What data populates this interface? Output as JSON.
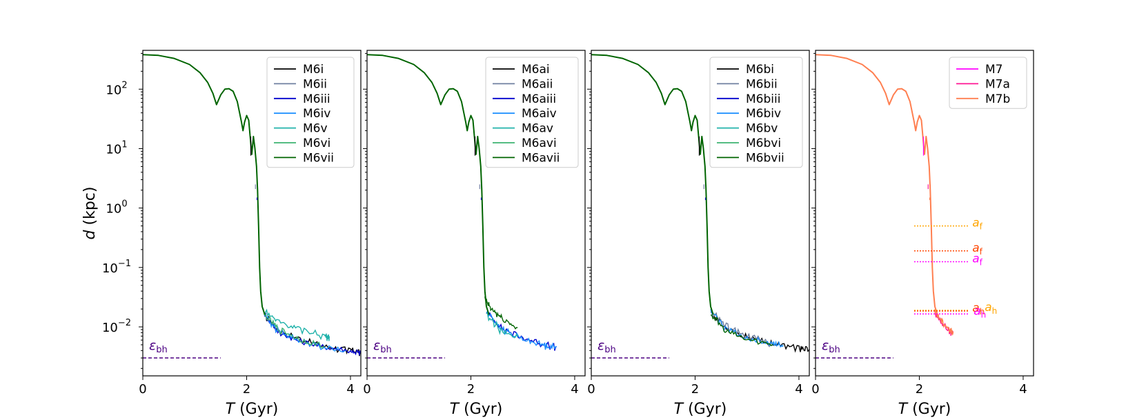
{
  "chart_data": {
    "type": "line",
    "ylabel": "d (kpc)",
    "ylabel_var": "d",
    "ylabel_unit": " (kpc)",
    "xlabel_var": "T",
    "xlabel_unit": " (Gyr)",
    "yscale": "log",
    "ylim": [
      0.0015,
      450
    ],
    "xticks": [
      0,
      2,
      4
    ],
    "yticks": [
      {
        "value": 100,
        "mant": "10",
        "exp": "2"
      },
      {
        "value": 10,
        "mant": "10",
        "exp": "1"
      },
      {
        "value": 1,
        "mant": "10",
        "exp": "0"
      },
      {
        "value": 0.1,
        "mant": "10",
        "exp": "−1"
      },
      {
        "value": 0.01,
        "mant": "10",
        "exp": "−2"
      }
    ],
    "softening": {
      "label_main": "ε",
      "label_sub": "bh",
      "value": 0.003,
      "x_range": [
        0,
        1.5
      ],
      "color": "#4b0082"
    },
    "orbit_profile": [
      [
        0,
        380
      ],
      [
        0.3,
        370
      ],
      [
        0.6,
        330
      ],
      [
        0.9,
        260
      ],
      [
        1.1,
        190
      ],
      [
        1.25,
        130
      ],
      [
        1.35,
        85
      ],
      [
        1.42,
        55
      ],
      [
        1.5,
        80
      ],
      [
        1.58,
        100
      ],
      [
        1.66,
        102
      ],
      [
        1.74,
        92
      ],
      [
        1.82,
        62
      ],
      [
        1.9,
        28
      ],
      [
        1.93,
        20
      ],
      [
        1.96,
        28
      ],
      [
        2.0,
        36
      ],
      [
        2.04,
        30
      ],
      [
        2.08,
        12
      ],
      [
        2.1,
        8
      ],
      [
        2.13,
        16
      ],
      [
        2.16,
        10
      ],
      [
        2.19,
        5
      ],
      [
        2.21,
        2
      ],
      [
        2.23,
        0.5
      ],
      [
        2.25,
        0.1
      ],
      [
        2.27,
        0.04
      ],
      [
        2.3,
        0.022
      ],
      [
        2.35,
        0.016
      ]
    ],
    "panels": [
      {
        "xlim": [
          0,
          4.2
        ],
        "legend": [
          {
            "name": "M6i",
            "color": "#000000"
          },
          {
            "name": "M6ii",
            "color": "#6f7f9f"
          },
          {
            "name": "M6iii",
            "color": "#0000cd"
          },
          {
            "name": "M6iv",
            "color": "#1e90ff"
          },
          {
            "name": "M6v",
            "color": "#20b2aa"
          },
          {
            "name": "M6vi",
            "color": "#3cb371"
          },
          {
            "name": "M6vii",
            "color": "#006400"
          }
        ],
        "tails": [
          {
            "color": "#000000",
            "points": [
              [
                2.35,
                0.016
              ],
              [
                2.6,
                0.009
              ],
              [
                3.0,
                0.0065
              ],
              [
                3.5,
                0.0047
              ],
              [
                4.0,
                0.0041
              ],
              [
                4.2,
                0.0038
              ]
            ]
          },
          {
            "color": "#0000cd",
            "points": [
              [
                2.35,
                0.016
              ],
              [
                2.6,
                0.0085
              ],
              [
                3.0,
                0.0058
              ],
              [
                3.5,
                0.0046
              ],
              [
                4.0,
                0.004
              ],
              [
                4.2,
                0.0037
              ]
            ]
          },
          {
            "color": "#1e90ff",
            "points": [
              [
                2.35,
                0.016
              ],
              [
                2.6,
                0.009
              ],
              [
                3.0,
                0.006
              ],
              [
                3.5,
                0.0045
              ],
              [
                3.9,
                0.004
              ]
            ]
          },
          {
            "color": "#20b2aa",
            "points": [
              [
                2.3,
                0.02
              ],
              [
                2.6,
                0.013
              ],
              [
                3.0,
                0.0095
              ],
              [
                3.5,
                0.0072
              ],
              [
                3.6,
                0.0068
              ]
            ]
          },
          {
            "color": "#3cb371",
            "points": [
              [
                2.35,
                0.016
              ],
              [
                2.6,
                0.0095
              ],
              [
                3.0,
                0.0063
              ],
              [
                3.5,
                0.0048
              ]
            ]
          }
        ]
      },
      {
        "xlim": [
          0,
          4.2
        ],
        "legend": [
          {
            "name": "M6ai",
            "color": "#000000"
          },
          {
            "name": "M6aii",
            "color": "#6f7f9f"
          },
          {
            "name": "M6aiii",
            "color": "#0000cd"
          },
          {
            "name": "M6aiv",
            "color": "#1e90ff"
          },
          {
            "name": "M6av",
            "color": "#20b2aa"
          },
          {
            "name": "M6avi",
            "color": "#3cb371"
          },
          {
            "name": "M6avii",
            "color": "#006400"
          }
        ],
        "tails": [
          {
            "color": "#0000cd",
            "points": [
              [
                2.3,
                0.018
              ],
              [
                2.6,
                0.0095
              ],
              [
                3.0,
                0.0066
              ],
              [
                3.4,
                0.0052
              ],
              [
                3.65,
                0.0047
              ]
            ]
          },
          {
            "color": "#1e90ff",
            "points": [
              [
                2.3,
                0.018
              ],
              [
                2.6,
                0.0095
              ],
              [
                3.0,
                0.0063
              ],
              [
                3.4,
                0.005
              ],
              [
                3.65,
                0.0046
              ]
            ]
          },
          {
            "color": "#20b2aa",
            "points": [
              [
                2.3,
                0.017
              ],
              [
                2.6,
                0.0085
              ],
              [
                2.9,
                0.0068
              ]
            ]
          },
          {
            "color": "#006400",
            "points": [
              [
                2.27,
                0.03
              ],
              [
                2.4,
                0.02
              ],
              [
                2.6,
                0.014
              ],
              [
                2.9,
                0.0097
              ]
            ]
          }
        ]
      },
      {
        "xlim": [
          0,
          4.2
        ],
        "legend": [
          {
            "name": "M6bi",
            "color": "#000000"
          },
          {
            "name": "M6bii",
            "color": "#6f7f9f"
          },
          {
            "name": "M6biii",
            "color": "#0000cd"
          },
          {
            "name": "M6biv",
            "color": "#1e90ff"
          },
          {
            "name": "M6bv",
            "color": "#20b2aa"
          },
          {
            "name": "M6bvi",
            "color": "#3cb371"
          },
          {
            "name": "M6bvii",
            "color": "#006400"
          }
        ],
        "tails": [
          {
            "color": "#000000",
            "points": [
              [
                2.3,
                0.018
              ],
              [
                2.6,
                0.0095
              ],
              [
                3.0,
                0.0068
              ],
              [
                3.5,
                0.0052
              ],
              [
                4.0,
                0.0045
              ],
              [
                4.2,
                0.0042
              ]
            ]
          },
          {
            "color": "#6f7f9f",
            "points": [
              [
                2.3,
                0.019
              ],
              [
                2.6,
                0.0105
              ],
              [
                3.0,
                0.0072
              ],
              [
                3.5,
                0.0053
              ]
            ]
          },
          {
            "color": "#1e90ff",
            "points": [
              [
                2.3,
                0.018
              ],
              [
                2.6,
                0.0095
              ],
              [
                3.0,
                0.0066
              ],
              [
                3.5,
                0.0052
              ],
              [
                3.7,
                0.0049
              ]
            ]
          },
          {
            "color": "#006400",
            "points": [
              [
                2.3,
                0.017
              ],
              [
                2.6,
                0.0085
              ],
              [
                3.0,
                0.0062
              ],
              [
                3.5,
                0.0051
              ]
            ]
          }
        ]
      },
      {
        "xlim": [
          0,
          4.2
        ],
        "legend": [
          {
            "name": "M7",
            "color": "#ff00ff"
          },
          {
            "name": "M7a",
            "color": "#ff1493"
          },
          {
            "name": "M7b",
            "color": "#ff7f50"
          }
        ],
        "tails": [
          {
            "color": "#ff1493",
            "points": [
              [
                2.3,
                0.017
              ],
              [
                2.45,
                0.011
              ],
              [
                2.6,
                0.0085
              ],
              [
                2.65,
                0.008
              ]
            ]
          },
          {
            "color": "#ff7f50",
            "points": [
              [
                2.3,
                0.018
              ],
              [
                2.45,
                0.012
              ],
              [
                2.6,
                0.0088
              ],
              [
                2.65,
                0.0083
              ]
            ]
          }
        ],
        "reference_lines": [
          {
            "color": "#ffa500",
            "value": 0.5,
            "label_main": "a",
            "label_sub": "f"
          },
          {
            "color": "#ff4500",
            "value": 0.19,
            "label_main": "a",
            "label_sub": "f"
          },
          {
            "color": "#ff00ff",
            "value": 0.125,
            "label_main": "a",
            "label_sub": "f"
          },
          {
            "color": "#ffa500",
            "value": 0.019,
            "label_main": "a",
            "label_sub": "h"
          },
          {
            "color": "#ff4500",
            "value": 0.0185,
            "label_main": "a",
            "label_sub": "h"
          },
          {
            "color": "#ff00ff",
            "value": 0.0165,
            "label_main": "a",
            "label_sub": "h"
          }
        ]
      }
    ]
  }
}
